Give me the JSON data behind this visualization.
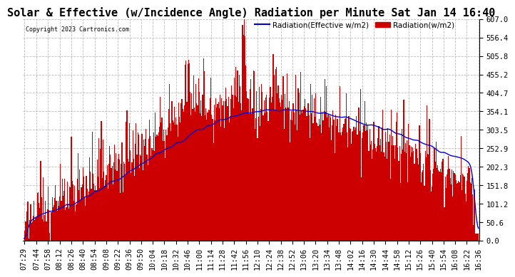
{
  "title": "Solar & Effective (w/Incidence Angle) Radiation per Minute Sat Jan 14 16:40",
  "copyright": "Copyright 2023 Cartronics.com",
  "legend_blue": "Radiation(Effective w/m2)",
  "legend_red": "Radiation(w/m2)",
  "ylim": [
    0,
    607.0
  ],
  "yticks": [
    0.0,
    50.6,
    101.2,
    151.8,
    202.3,
    252.9,
    303.5,
    354.1,
    404.7,
    455.2,
    505.8,
    556.4,
    607.0
  ],
  "ytick_labels": [
    "0.0",
    "50.6",
    "101.2",
    "151.8",
    "202.3",
    "252.9",
    "303.5",
    "354.1",
    "404.7",
    "455.2",
    "505.8",
    "556.4",
    "607.0"
  ],
  "background_color": "#ffffff",
  "grid_color": "#bbbbbb",
  "red_color": "#cc0000",
  "blue_color": "#0000cc",
  "title_fontsize": 11,
  "tick_fontsize": 7.5,
  "x_tick_labels": [
    "07:29",
    "07:44",
    "07:58",
    "08:12",
    "08:26",
    "08:40",
    "08:54",
    "09:08",
    "09:22",
    "09:36",
    "09:50",
    "10:04",
    "10:18",
    "10:32",
    "10:46",
    "11:00",
    "11:14",
    "11:28",
    "11:42",
    "11:56",
    "12:10",
    "12:24",
    "12:38",
    "12:52",
    "13:06",
    "13:20",
    "13:34",
    "13:48",
    "14:02",
    "14:16",
    "14:30",
    "14:44",
    "14:58",
    "15:12",
    "15:26",
    "15:40",
    "15:54",
    "16:08",
    "16:22",
    "16:36"
  ]
}
